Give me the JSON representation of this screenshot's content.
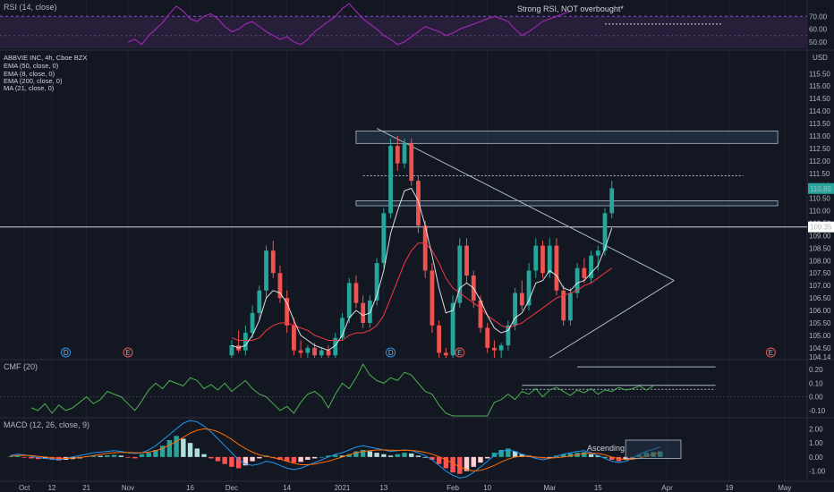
{
  "colors": {
    "background": "#131722",
    "grid": "#1e222d",
    "up": "#26a69a",
    "down": "#ef5350",
    "rsi": "#9c27b0",
    "rsi_band": "#2a1f3d",
    "cmf": "#4caf50",
    "macd": "#2196f3",
    "signal": "#ff6d00",
    "ema8": "#ffffff",
    "ma21": "#f23645",
    "overlay": "#aeb8c8",
    "price_tag": "#26a69a",
    "ref_tag": "#ffffff"
  },
  "axis": {
    "currency": "USD",
    "x_ticks": [
      {
        "label": "Oct",
        "i": 3
      },
      {
        "label": "12",
        "i": 7
      },
      {
        "label": "21",
        "i": 12
      },
      {
        "label": "Nov",
        "i": 18
      },
      {
        "label": "16",
        "i": 27
      },
      {
        "label": "Dec",
        "i": 33
      },
      {
        "label": "14",
        "i": 41
      },
      {
        "label": "2021",
        "i": 49
      },
      {
        "label": "13",
        "i": 55
      },
      {
        "label": "Feb",
        "i": 65
      },
      {
        "label": "10",
        "i": 70
      },
      {
        "label": "Mar",
        "i": 79
      },
      {
        "label": "15",
        "i": 86
      },
      {
        "label": "Apr",
        "i": 96
      },
      {
        "label": "19",
        "i": 105
      },
      {
        "label": "May",
        "i": 113
      }
    ],
    "x_count": 117,
    "event_markers": [
      {
        "label": "D",
        "i": 9,
        "color": "#2196f3"
      },
      {
        "label": "E",
        "i": 18,
        "color": "#ef5350"
      },
      {
        "label": "D",
        "i": 56,
        "color": "#2196f3"
      },
      {
        "label": "E",
        "i": 66,
        "color": "#ef5350"
      },
      {
        "label": "E",
        "i": 111,
        "color": "#ef5350"
      }
    ]
  },
  "chart_data": [
    {
      "type": "line",
      "pane": "rsi",
      "title": "RSI (14, close)",
      "annotation": "Strong RSI, NOT overbought*",
      "ylim": [
        45,
        80
      ],
      "y_ticks": [
        "70.00",
        "60.00",
        "50.00"
      ],
      "band": [
        30,
        70
      ],
      "x_start": 18,
      "values": [
        50,
        52,
        48,
        55,
        60,
        65,
        72,
        78,
        74,
        68,
        66,
        70,
        72,
        68,
        62,
        58,
        60,
        64,
        66,
        62,
        58,
        55,
        52,
        54,
        50,
        48,
        52,
        58,
        62,
        66,
        70,
        76,
        80,
        74,
        68,
        64,
        60,
        55,
        52,
        48,
        50,
        54,
        58,
        62,
        60,
        58,
        55,
        57,
        60,
        62,
        64,
        66,
        68,
        70,
        68,
        66,
        60,
        55,
        58,
        62,
        66,
        68,
        70,
        72,
        74
      ]
    },
    {
      "type": "candlestick",
      "pane": "price",
      "title": "ABBVIE INC, 4h, Cboe BZX",
      "legend": [
        "EMA (50, close, 0)",
        "EMA (8, close, 0)",
        "EMA (200, close, 0)",
        "MA (21, close, 0)"
      ],
      "ylim": [
        104.1,
        116.3
      ],
      "y_ticks": [
        "115.50",
        "115.00",
        "114.50",
        "114.00",
        "113.50",
        "113.00",
        "112.50",
        "112.00",
        "111.50",
        "111.00",
        "110.50",
        "110.00",
        "109.50",
        "109.00",
        "108.50",
        "108.00",
        "107.50",
        "107.00",
        "106.50",
        "106.00",
        "105.50",
        "105.00",
        "104.50",
        "104.14"
      ],
      "last_price": "110.89",
      "last_price_value": 110.89,
      "ref_price": "109.35",
      "ref_price_value": 109.35,
      "x_start": 33,
      "ohlc": [
        [
          104.2,
          104.8,
          104.1,
          104.6
        ],
        [
          104.6,
          105.2,
          104.3,
          104.4
        ],
        [
          104.4,
          105.4,
          104.2,
          105.1
        ],
        [
          105.1,
          106.2,
          104.9,
          105.9
        ],
        [
          105.9,
          107.0,
          105.6,
          106.8
        ],
        [
          106.8,
          108.6,
          106.5,
          108.4
        ],
        [
          108.4,
          108.8,
          107.3,
          107.5
        ],
        [
          107.5,
          107.8,
          106.3,
          106.5
        ],
        [
          106.5,
          106.8,
          105.1,
          105.4
        ],
        [
          105.4,
          105.7,
          104.2,
          104.4
        ],
        [
          104.4,
          104.8,
          104.1,
          104.3
        ],
        [
          104.3,
          104.6,
          104.1,
          104.5
        ],
        [
          104.5,
          104.7,
          104.1,
          104.2
        ],
        [
          104.2,
          104.5,
          104.1,
          104.4
        ],
        [
          104.4,
          104.6,
          104.1,
          104.2
        ],
        [
          104.2,
          105.1,
          104.1,
          104.9
        ],
        [
          104.9,
          105.9,
          104.8,
          105.7
        ],
        [
          105.7,
          107.3,
          105.5,
          107.1
        ],
        [
          107.1,
          107.4,
          106.1,
          106.3
        ],
        [
          106.3,
          106.6,
          105.3,
          105.5
        ],
        [
          105.5,
          106.6,
          105.3,
          106.4
        ],
        [
          106.4,
          108.1,
          106.2,
          107.9
        ],
        [
          107.9,
          110.1,
          107.7,
          109.9
        ],
        [
          109.9,
          112.9,
          109.7,
          112.6
        ],
        [
          112.6,
          113.0,
          111.6,
          111.9
        ],
        [
          111.9,
          112.9,
          111.7,
          112.7
        ],
        [
          112.7,
          112.9,
          111.0,
          111.2
        ],
        [
          111.2,
          111.4,
          109.1,
          109.4
        ],
        [
          109.4,
          109.6,
          107.3,
          107.6
        ],
        [
          107.6,
          107.9,
          105.1,
          105.4
        ],
        [
          105.4,
          105.6,
          104.1,
          104.3
        ],
        [
          104.3,
          104.5,
          104.1,
          104.2
        ],
        [
          104.2,
          106.6,
          104.1,
          106.3
        ],
        [
          106.3,
          108.9,
          106.1,
          108.6
        ],
        [
          108.6,
          108.9,
          107.1,
          107.4
        ],
        [
          107.4,
          107.6,
          106.1,
          106.4
        ],
        [
          106.4,
          106.6,
          105.1,
          105.3
        ],
        [
          105.3,
          105.5,
          104.3,
          104.5
        ],
        [
          104.5,
          104.8,
          104.1,
          104.4
        ],
        [
          104.4,
          104.7,
          104.1,
          104.6
        ],
        [
          104.6,
          105.6,
          104.4,
          105.4
        ],
        [
          105.4,
          106.9,
          105.2,
          106.7
        ],
        [
          106.7,
          107.2,
          106.0,
          106.2
        ],
        [
          106.2,
          107.9,
          106.0,
          107.6
        ],
        [
          107.6,
          108.9,
          107.3,
          108.6
        ],
        [
          108.6,
          108.8,
          107.3,
          107.5
        ],
        [
          107.5,
          108.9,
          107.3,
          108.6
        ],
        [
          108.6,
          108.9,
          106.6,
          106.8
        ],
        [
          106.8,
          107.0,
          105.4,
          105.6
        ],
        [
          105.6,
          106.9,
          105.4,
          106.7
        ],
        [
          106.7,
          107.9,
          106.5,
          107.7
        ],
        [
          107.7,
          108.1,
          107.1,
          107.3
        ],
        [
          107.3,
          108.4,
          107.1,
          108.2
        ],
        [
          108.2,
          108.6,
          107.6,
          108.4
        ],
        [
          108.4,
          110.1,
          108.2,
          109.9
        ],
        [
          109.9,
          111.2,
          109.7,
          110.9
        ]
      ],
      "levels": [
        {
          "label": "",
          "value": 109.35,
          "style": "solid"
        }
      ],
      "zones": [
        {
          "from_i": 51,
          "to_i": 112,
          "low": 112.7,
          "high": 113.2
        },
        {
          "from_i": 51,
          "to_i": 112,
          "low": 110.2,
          "high": 110.4
        }
      ],
      "dotted_level": {
        "from_i": 52,
        "to_i": 107,
        "value": 111.4
      },
      "triangle": {
        "upper": [
          [
            54,
            113.3
          ],
          [
            97,
            107.2
          ]
        ],
        "lower": [
          [
            79,
            104.1
          ],
          [
            97,
            107.2
          ]
        ]
      },
      "ema8": [
        104.6,
        104.5,
        104.6,
        105.0,
        105.6,
        106.5,
        106.8,
        106.7,
        106.3,
        105.6,
        105.0,
        104.8,
        104.6,
        104.5,
        104.4,
        104.6,
        105.0,
        105.7,
        106.0,
        105.8,
        105.9,
        106.6,
        107.6,
        109.1,
        110.0,
        110.8,
        110.9,
        110.4,
        109.4,
        108.2,
        106.9,
        105.9,
        106.0,
        106.9,
        107.1,
        106.9,
        106.4,
        105.8,
        105.3,
        105.1,
        105.2,
        105.7,
        105.9,
        106.4,
        107.1,
        107.2,
        107.6,
        107.4,
        106.9,
        106.8,
        107.1,
        107.2,
        107.5,
        107.8,
        108.5,
        109.3
      ],
      "ma21": [
        104.9,
        104.8,
        104.8,
        104.8,
        104.9,
        105.2,
        105.4,
        105.5,
        105.5,
        105.4,
        105.3,
        105.2,
        105.0,
        104.9,
        104.8,
        104.8,
        104.8,
        105.0,
        105.1,
        105.1,
        105.2,
        105.4,
        105.8,
        106.5,
        107.2,
        107.9,
        108.4,
        108.7,
        108.7,
        108.4,
        107.9,
        107.3,
        106.9,
        106.7,
        106.5,
        106.3,
        106.1,
        105.8,
        105.6,
        105.4,
        105.3,
        105.4,
        105.5,
        105.7,
        105.9,
        106.1,
        106.3,
        106.5,
        106.6,
        106.7,
        106.8,
        107.0,
        107.1,
        107.3,
        107.5,
        107.7
      ]
    },
    {
      "type": "line",
      "pane": "cmf",
      "title": "CMF (20)",
      "ylim": [
        -0.14,
        0.26
      ],
      "y_ticks": [
        "0.20",
        "0.10",
        "0.00",
        "-0.10"
      ],
      "x_start": 4,
      "values": [
        -0.08,
        -0.1,
        -0.05,
        -0.12,
        -0.06,
        -0.1,
        -0.08,
        -0.04,
        0.0,
        -0.05,
        -0.02,
        0.04,
        0.02,
        0.0,
        -0.05,
        -0.1,
        -0.03,
        0.05,
        0.1,
        0.06,
        0.12,
        0.1,
        0.08,
        0.14,
        0.12,
        0.06,
        0.09,
        0.05,
        0.1,
        0.04,
        0.08,
        0.12,
        0.06,
        0.02,
        0.0,
        -0.05,
        -0.1,
        -0.07,
        -0.12,
        -0.04,
        0.02,
        0.04,
        0.0,
        -0.08,
        0.02,
        0.1,
        0.06,
        0.14,
        0.24,
        0.16,
        0.12,
        0.1,
        0.14,
        0.12,
        0.18,
        0.16,
        0.1,
        0.04,
        0.02,
        -0.06,
        -0.12,
        -0.14,
        -0.14,
        -0.14,
        -0.14,
        -0.14,
        -0.14,
        -0.04,
        -0.02,
        0.02,
        -0.02,
        0.04,
        0.02,
        0.06,
        0.0,
        0.05,
        0.07,
        0.04,
        0.01,
        0.05,
        0.03,
        0.06,
        0.02,
        0.05,
        0.04,
        0.07,
        0.05,
        0.06,
        0.08,
        0.05,
        0.08
      ],
      "levels": [
        {
          "from_i": 83,
          "to_i": 103,
          "value": 0.22,
          "style": "solid"
        },
        {
          "from_i": 75,
          "to_i": 103,
          "value": 0.085,
          "style": "solid"
        },
        {
          "from_i": 75,
          "to_i": 103,
          "value": 0.055,
          "style": "dotted"
        }
      ]
    },
    {
      "type": "bar",
      "pane": "macd",
      "title": "MACD (12, 26, close, 9)",
      "annotation": "Ascending",
      "ylim": [
        -1.6,
        2.6
      ],
      "y_ticks": [
        "2.00",
        "1.00",
        "0.00",
        "-1.00"
      ],
      "x_start": 1,
      "histogram": [
        0.05,
        0.08,
        -0.05,
        -0.1,
        -0.15,
        -0.12,
        -0.2,
        -0.25,
        -0.2,
        -0.15,
        -0.1,
        0.05,
        0.1,
        0.08,
        0.12,
        0.15,
        0.1,
        -0.05,
        -0.1,
        0.2,
        0.3,
        0.5,
        0.8,
        1.2,
        1.5,
        1.3,
        1.0,
        0.6,
        0.2,
        -0.1,
        -0.3,
        -0.5,
        -0.7,
        -0.8,
        -0.6,
        -0.3,
        -0.1,
        0.1,
        -0.05,
        -0.2,
        -0.3,
        -0.4,
        -0.35,
        -0.2,
        -0.1,
        0.0,
        0.1,
        0.15,
        0.1,
        0.2,
        0.4,
        0.5,
        0.4,
        0.3,
        0.2,
        0.1,
        0.2,
        0.3,
        0.25,
        0.1,
        0.0,
        -0.2,
        -0.5,
        -0.8,
        -1.1,
        -1.2,
        -1.0,
        -0.7,
        -0.4,
        -0.1,
        0.3,
        0.5,
        0.6,
        0.4,
        0.2,
        0.1,
        -0.05,
        -0.1,
        -0.05,
        0.1,
        0.2,
        0.25,
        0.3,
        0.35,
        0.2,
        0.1,
        0.0,
        -0.2,
        -0.3,
        -0.2,
        -0.05,
        0.15,
        0.3,
        0.35,
        0.4
      ],
      "macd": [
        0.1,
        0.2,
        0.15,
        0.05,
        -0.05,
        -0.1,
        -0.15,
        -0.2,
        -0.1,
        0.0,
        0.1,
        0.2,
        0.3,
        0.35,
        0.4,
        0.45,
        0.4,
        0.3,
        0.25,
        0.3,
        0.5,
        0.8,
        1.2,
        1.6,
        2.0,
        2.4,
        2.6,
        2.5,
        2.2,
        1.8,
        1.3,
        0.8,
        0.3,
        -0.2,
        -0.5,
        -0.6,
        -0.5,
        -0.3,
        -0.4,
        -0.6,
        -0.8,
        -0.9,
        -0.8,
        -0.6,
        -0.4,
        -0.2,
        0.0,
        0.2,
        0.3,
        0.5,
        0.7,
        0.8,
        0.7,
        0.6,
        0.5,
        0.4,
        0.45,
        0.5,
        0.45,
        0.3,
        0.1,
        -0.2,
        -0.6,
        -1.0,
        -1.3,
        -1.5,
        -1.4,
        -1.1,
        -0.7,
        -0.3,
        0.1,
        0.4,
        0.5,
        0.4,
        0.2,
        0.05,
        -0.1,
        -0.2,
        -0.1,
        0.05,
        0.2,
        0.3,
        0.4,
        0.45,
        0.3,
        0.1,
        -0.1,
        -0.3,
        -0.4,
        -0.3,
        -0.1,
        0.2,
        0.4,
        0.55,
        0.7
      ],
      "signal": [
        0.05,
        0.1,
        0.12,
        0.1,
        0.05,
        0.0,
        -0.05,
        -0.1,
        -0.1,
        -0.08,
        -0.04,
        0.02,
        0.1,
        0.18,
        0.25,
        0.3,
        0.33,
        0.32,
        0.3,
        0.3,
        0.35,
        0.45,
        0.6,
        0.85,
        1.1,
        1.4,
        1.7,
        1.9,
        2.0,
        1.95,
        1.8,
        1.55,
        1.25,
        0.9,
        0.6,
        0.35,
        0.15,
        0.05,
        -0.05,
        -0.15,
        -0.3,
        -0.45,
        -0.55,
        -0.55,
        -0.5,
        -0.4,
        -0.3,
        -0.15,
        0.0,
        0.15,
        0.3,
        0.4,
        0.45,
        0.5,
        0.5,
        0.48,
        0.47,
        0.48,
        0.47,
        0.42,
        0.33,
        0.2,
        0.02,
        -0.2,
        -0.45,
        -0.7,
        -0.9,
        -1.0,
        -0.95,
        -0.8,
        -0.6,
        -0.35,
        -0.15,
        0.0,
        0.05,
        0.05,
        0.0,
        -0.05,
        -0.08,
        -0.05,
        0.0,
        0.08,
        0.16,
        0.25,
        0.28,
        0.25,
        0.15,
        0.0,
        -0.12,
        -0.18,
        -0.16,
        -0.08,
        0.05,
        0.2,
        0.3
      ],
      "box": {
        "from_i": 90,
        "to_i": 98,
        "low": -0.1,
        "high": 1.2
      }
    }
  ]
}
